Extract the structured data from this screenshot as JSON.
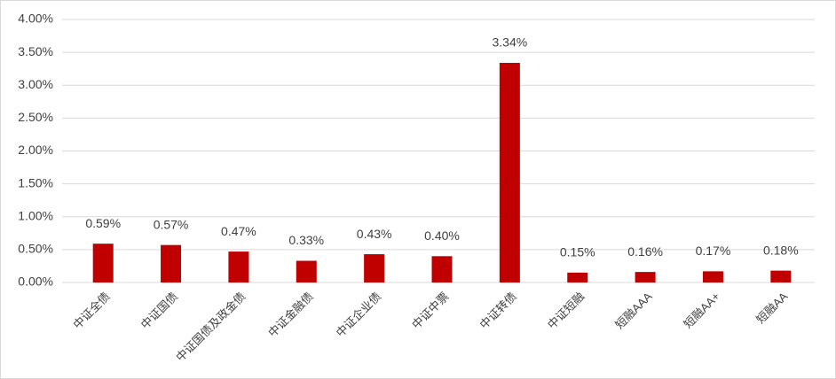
{
  "chart_data": {
    "type": "bar",
    "categories": [
      "中证全债",
      "中证国债",
      "中证国债及政金债",
      "中证金融债",
      "中证企业债",
      "中证中票",
      "中证转债",
      "中证短融",
      "短融AAA",
      "短融AA+",
      "短融AA"
    ],
    "values": [
      0.59,
      0.57,
      0.47,
      0.33,
      0.43,
      0.4,
      3.34,
      0.15,
      0.16,
      0.17,
      0.18
    ],
    "value_labels": [
      "0.59%",
      "0.57%",
      "0.47%",
      "0.33%",
      "0.43%",
      "0.40%",
      "3.34%",
      "0.15%",
      "0.16%",
      "0.17%",
      "0.18%"
    ],
    "color": "#c00000",
    "ylim": [
      0,
      4
    ],
    "yticks": [
      {
        "value": 0,
        "label": "0.00%"
      },
      {
        "value": 0.5,
        "label": "0.50%"
      },
      {
        "value": 1,
        "label": "1.00%"
      },
      {
        "value": 1.5,
        "label": "1.50%"
      },
      {
        "value": 2,
        "label": "2.00%"
      },
      {
        "value": 2.5,
        "label": "2.50%"
      },
      {
        "value": 3,
        "label": "3.00%"
      },
      {
        "value": 3.5,
        "label": "3.50%"
      },
      {
        "value": 4,
        "label": "4.00%"
      }
    ],
    "grid": true
  }
}
